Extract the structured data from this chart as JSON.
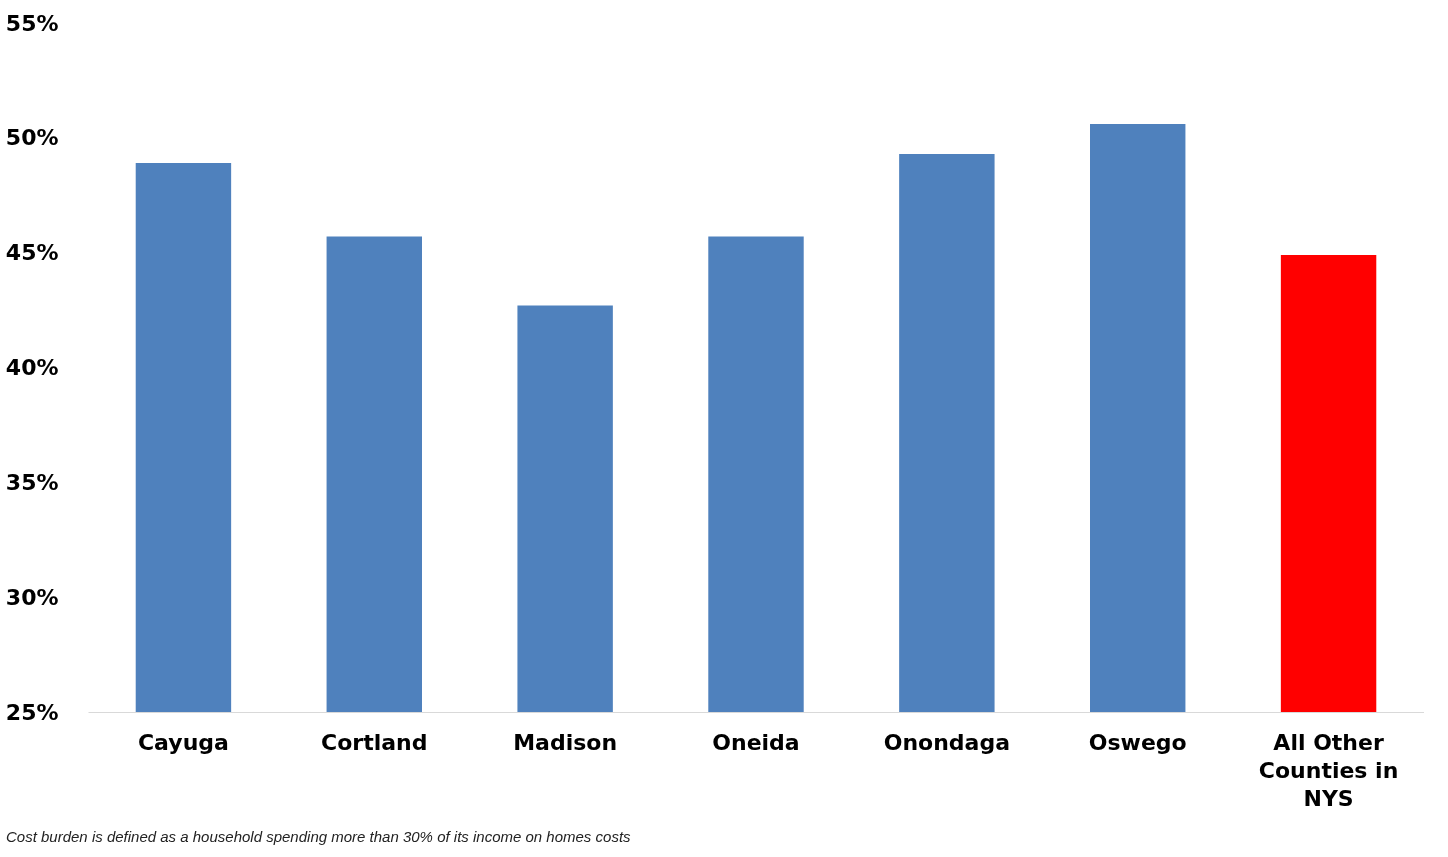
{
  "chart_data": {
    "type": "bar",
    "categories": [
      "Cayuga",
      "Cortland",
      "Madison",
      "Oneida",
      "Onondaga",
      "Oswego",
      "All Other Counties in NYS"
    ],
    "values": [
      48.9,
      45.7,
      42.7,
      45.7,
      49.3,
      50.6,
      44.9
    ],
    "colors": [
      "#4f81bd",
      "#4f81bd",
      "#4f81bd",
      "#4f81bd",
      "#4f81bd",
      "#4f81bd",
      "#ff0000"
    ],
    "ylim": [
      25,
      55
    ],
    "yticks": [
      {
        "value": 25,
        "label": "25%"
      },
      {
        "value": 30,
        "label": "30%"
      },
      {
        "value": 35,
        "label": "35%"
      },
      {
        "value": 40,
        "label": "40%"
      },
      {
        "value": 45,
        "label": "45%"
      },
      {
        "value": 50,
        "label": "50%"
      },
      {
        "value": 55,
        "label": "55%"
      }
    ],
    "grid": false,
    "legend": false,
    "annotations": [
      "Cost burden is defined as a household spending more than 30% of its income on homes costs"
    ]
  }
}
